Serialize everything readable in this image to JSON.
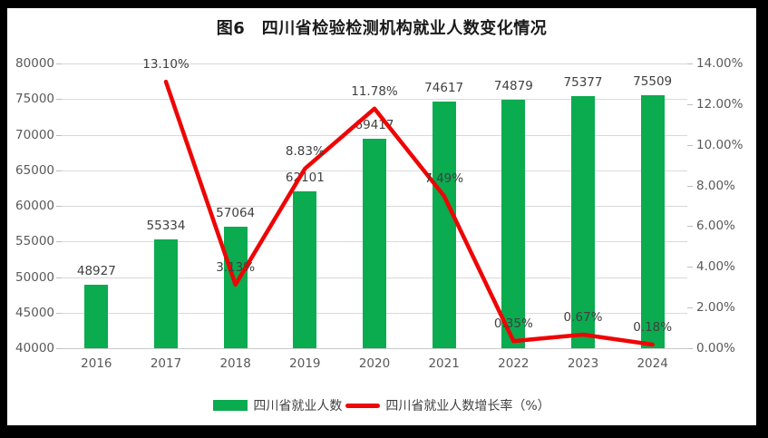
{
  "title": "图6　四川省检验检测机构就业人数变化情况",
  "colors": {
    "bar": "#0bab50",
    "line": "#ee0505",
    "grid": "#d9d9d9",
    "axis_text": "#595959",
    "data_label": "#404040",
    "frame": "#000000",
    "background": "#ffffff"
  },
  "chart_data": {
    "type": "bar",
    "subtype": "combo-bar-line",
    "title": "图6　四川省检验检测机构就业人数变化情况",
    "categories": [
      "2016",
      "2017",
      "2018",
      "2019",
      "2020",
      "2021",
      "2022",
      "2023",
      "2024"
    ],
    "series": [
      {
        "name": "四川省就业人数",
        "type": "bar",
        "axis": "left",
        "values": [
          48927,
          55334,
          57064,
          62101,
          69417,
          74617,
          74879,
          75377,
          75509
        ],
        "labels": [
          "48927",
          "55334",
          "57064",
          "62101",
          "69417",
          "74617",
          "74879",
          "75377",
          "75509"
        ]
      },
      {
        "name": "四川省就业人数增长率（%）",
        "type": "line",
        "axis": "right",
        "values": [
          null,
          13.1,
          3.13,
          8.83,
          11.78,
          7.49,
          0.35,
          0.67,
          0.18
        ],
        "labels": [
          "",
          "13.10%",
          "3.13%",
          "8.83%",
          "11.78%",
          "7.49%",
          "0.35%",
          "0.67%",
          "0.18%"
        ]
      }
    ],
    "left_axis": {
      "min": 40000,
      "max": 80000,
      "step": 5000,
      "ticks": [
        "40000",
        "45000",
        "50000",
        "55000",
        "60000",
        "65000",
        "70000",
        "75000",
        "80000"
      ]
    },
    "right_axis": {
      "min": 0,
      "max": 14,
      "step": 2,
      "ticks": [
        "0.00%",
        "2.00%",
        "4.00%",
        "6.00%",
        "8.00%",
        "10.00%",
        "12.00%",
        "14.00%"
      ]
    },
    "grid": true,
    "legend_position": "bottom",
    "xlabel": "",
    "ylabel_left": "",
    "ylabel_right": ""
  },
  "legend": {
    "items": [
      {
        "label": "四川省就业人数",
        "marker": "bar-swatch"
      },
      {
        "label": "四川省就业人数增长率（%）",
        "marker": "line-swatch"
      }
    ]
  }
}
